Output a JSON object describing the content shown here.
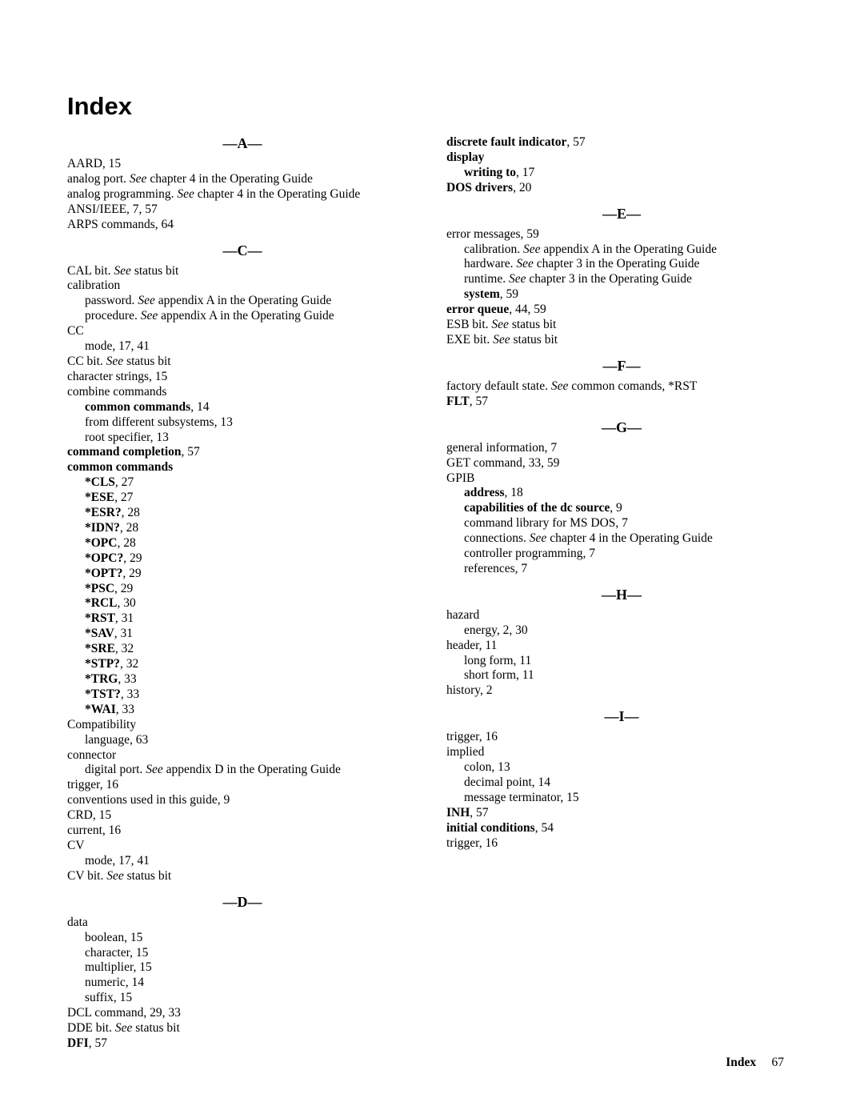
{
  "title": "Index",
  "page_label": "Index",
  "page_number": "67",
  "letter_dash": "—",
  "sections": [
    {
      "letter": "A",
      "entries": [
        {
          "indent": 0,
          "runs": [
            {
              "t": "AARD, 15"
            }
          ]
        },
        {
          "indent": 0,
          "runs": [
            {
              "t": "analog port. "
            },
            {
              "t": "See",
              "style": "i"
            },
            {
              "t": " chapter 4 in the Operating Guide"
            }
          ]
        },
        {
          "indent": 0,
          "runs": [
            {
              "t": "analog programming. "
            },
            {
              "t": "See",
              "style": "i"
            },
            {
              "t": " chapter 4 in the Operating Guide"
            }
          ]
        },
        {
          "indent": 0,
          "runs": [
            {
              "t": "ANSI/IEEE, 7, 57"
            }
          ]
        },
        {
          "indent": 0,
          "runs": [
            {
              "t": "ARPS commands, 64"
            }
          ]
        }
      ]
    },
    {
      "letter": "C",
      "entries": [
        {
          "indent": 0,
          "runs": [
            {
              "t": "CAL bit. "
            },
            {
              "t": "See",
              "style": "i"
            },
            {
              "t": " status bit"
            }
          ]
        },
        {
          "indent": 0,
          "runs": [
            {
              "t": "calibration"
            }
          ]
        },
        {
          "indent": 1,
          "runs": [
            {
              "t": "password. "
            },
            {
              "t": "See",
              "style": "i"
            },
            {
              "t": " appendix A in the Operating Guide"
            }
          ]
        },
        {
          "indent": 1,
          "runs": [
            {
              "t": "procedure. "
            },
            {
              "t": "See",
              "style": "i"
            },
            {
              "t": " appendix A in the Operating Guide"
            }
          ]
        },
        {
          "indent": 0,
          "runs": [
            {
              "t": "CC"
            }
          ]
        },
        {
          "indent": 1,
          "runs": [
            {
              "t": "mode, 17, 41"
            }
          ]
        },
        {
          "indent": 0,
          "runs": [
            {
              "t": "CC bit. "
            },
            {
              "t": "See",
              "style": "i"
            },
            {
              "t": " status bit"
            }
          ]
        },
        {
          "indent": 0,
          "runs": [
            {
              "t": "character strings, 15"
            }
          ]
        },
        {
          "indent": 0,
          "runs": [
            {
              "t": "combine commands"
            }
          ]
        },
        {
          "indent": 1,
          "runs": [
            {
              "t": "common commands",
              "style": "b"
            },
            {
              "t": ", 14"
            }
          ]
        },
        {
          "indent": 1,
          "runs": [
            {
              "t": "from different subsystems, 13"
            }
          ]
        },
        {
          "indent": 1,
          "runs": [
            {
              "t": "root specifier, 13"
            }
          ]
        },
        {
          "indent": 0,
          "runs": [
            {
              "t": "command completion",
              "style": "b"
            },
            {
              "t": ", 57"
            }
          ]
        },
        {
          "indent": 0,
          "runs": [
            {
              "t": "common commands",
              "style": "b"
            }
          ]
        },
        {
          "indent": 1,
          "runs": [
            {
              "t": "*CLS",
              "style": "b"
            },
            {
              "t": ", 27"
            }
          ]
        },
        {
          "indent": 1,
          "runs": [
            {
              "t": "*ESE",
              "style": "b"
            },
            {
              "t": ", 27"
            }
          ]
        },
        {
          "indent": 1,
          "runs": [
            {
              "t": "*ESR?",
              "style": "b"
            },
            {
              "t": ", 28"
            }
          ]
        },
        {
          "indent": 1,
          "runs": [
            {
              "t": "*IDN?",
              "style": "b"
            },
            {
              "t": ", 28"
            }
          ]
        },
        {
          "indent": 1,
          "runs": [
            {
              "t": "*OPC",
              "style": "b"
            },
            {
              "t": ", 28"
            }
          ]
        },
        {
          "indent": 1,
          "runs": [
            {
              "t": "*OPC?",
              "style": "b"
            },
            {
              "t": ", 29"
            }
          ]
        },
        {
          "indent": 1,
          "runs": [
            {
              "t": "*OPT?",
              "style": "b"
            },
            {
              "t": ", 29"
            }
          ]
        },
        {
          "indent": 1,
          "runs": [
            {
              "t": "*PSC",
              "style": "b"
            },
            {
              "t": ", 29"
            }
          ]
        },
        {
          "indent": 1,
          "runs": [
            {
              "t": "*RCL",
              "style": "b"
            },
            {
              "t": ", 30"
            }
          ]
        },
        {
          "indent": 1,
          "runs": [
            {
              "t": "*RST",
              "style": "b"
            },
            {
              "t": ", 31"
            }
          ]
        },
        {
          "indent": 1,
          "runs": [
            {
              "t": "*SAV",
              "style": "b"
            },
            {
              "t": ", 31"
            }
          ]
        },
        {
          "indent": 1,
          "runs": [
            {
              "t": "*SRE",
              "style": "b"
            },
            {
              "t": ", 32"
            }
          ]
        },
        {
          "indent": 1,
          "runs": [
            {
              "t": "*STP?",
              "style": "b"
            },
            {
              "t": ", 32"
            }
          ]
        },
        {
          "indent": 1,
          "runs": [
            {
              "t": "*TRG",
              "style": "b"
            },
            {
              "t": ", 33"
            }
          ]
        },
        {
          "indent": 1,
          "runs": [
            {
              "t": "*TST?",
              "style": "b"
            },
            {
              "t": ", 33"
            }
          ]
        },
        {
          "indent": 1,
          "runs": [
            {
              "t": "*WAI",
              "style": "b"
            },
            {
              "t": ", 33"
            }
          ]
        },
        {
          "indent": 0,
          "runs": [
            {
              "t": "Compatibility"
            }
          ]
        },
        {
          "indent": 1,
          "runs": [
            {
              "t": "language, 63"
            }
          ]
        },
        {
          "indent": 0,
          "runs": [
            {
              "t": "connector"
            }
          ]
        },
        {
          "indent": 1,
          "runs": [
            {
              "t": "digital port. "
            },
            {
              "t": "See",
              "style": "i"
            },
            {
              "t": " appendix D in the Operating Guide"
            }
          ]
        },
        {
          "indent": 0,
          "runs": [
            {
              "t": "trigger, 16"
            }
          ]
        },
        {
          "indent": 0,
          "runs": [
            {
              "t": "conventions used in this guide, 9"
            }
          ]
        },
        {
          "indent": 0,
          "runs": [
            {
              "t": "CRD, 15"
            }
          ]
        },
        {
          "indent": 0,
          "runs": [
            {
              "t": "current, 16"
            }
          ]
        },
        {
          "indent": 0,
          "runs": [
            {
              "t": "CV"
            }
          ]
        },
        {
          "indent": 1,
          "runs": [
            {
              "t": "mode, 17, 41"
            }
          ]
        },
        {
          "indent": 0,
          "runs": [
            {
              "t": "CV bit. "
            },
            {
              "t": "See",
              "style": "i"
            },
            {
              "t": " status bit"
            }
          ]
        }
      ]
    },
    {
      "letter": "D",
      "entries": [
        {
          "indent": 0,
          "runs": [
            {
              "t": "data"
            }
          ]
        },
        {
          "indent": 1,
          "runs": [
            {
              "t": "boolean, 15"
            }
          ]
        },
        {
          "indent": 1,
          "runs": [
            {
              "t": "character, 15"
            }
          ]
        },
        {
          "indent": 1,
          "runs": [
            {
              "t": "multiplier, 15"
            }
          ]
        },
        {
          "indent": 1,
          "runs": [
            {
              "t": "numeric, 14"
            }
          ]
        },
        {
          "indent": 1,
          "runs": [
            {
              "t": "suffix, 15"
            }
          ]
        },
        {
          "indent": 0,
          "runs": [
            {
              "t": "DCL command, 29, 33"
            }
          ]
        },
        {
          "indent": 0,
          "runs": [
            {
              "t": "DDE bit. "
            },
            {
              "t": "See",
              "style": "i"
            },
            {
              "t": " status bit"
            }
          ]
        },
        {
          "indent": 0,
          "runs": [
            {
              "t": "DFI",
              "style": "b"
            },
            {
              "t": ", 57"
            }
          ]
        },
        {
          "indent": 0,
          "runs": [
            {
              "t": "discrete fault indicator",
              "style": "b"
            },
            {
              "t": ", 57"
            }
          ]
        },
        {
          "indent": 0,
          "runs": [
            {
              "t": "display",
              "style": "b"
            }
          ]
        },
        {
          "indent": 1,
          "runs": [
            {
              "t": "writing to",
              "style": "b"
            },
            {
              "t": ", 17"
            }
          ]
        },
        {
          "indent": 0,
          "runs": [
            {
              "t": "DOS drivers",
              "style": "b"
            },
            {
              "t": ", 20"
            }
          ]
        }
      ]
    },
    {
      "letter": "E",
      "entries": [
        {
          "indent": 0,
          "runs": [
            {
              "t": "error messages, 59"
            }
          ]
        },
        {
          "indent": 1,
          "runs": [
            {
              "t": "calibration. "
            },
            {
              "t": "See",
              "style": "i"
            },
            {
              "t": " appendix A in the Operating Guide"
            }
          ]
        },
        {
          "indent": 1,
          "runs": [
            {
              "t": "hardware. "
            },
            {
              "t": "See",
              "style": "i"
            },
            {
              "t": " chapter 3 in the Operating Guide"
            }
          ]
        },
        {
          "indent": 1,
          "runs": [
            {
              "t": "runtime. "
            },
            {
              "t": "See",
              "style": "i"
            },
            {
              "t": " chapter 3 in the Operating Guide"
            }
          ]
        },
        {
          "indent": 1,
          "runs": [
            {
              "t": "system",
              "style": "b"
            },
            {
              "t": ", 59"
            }
          ]
        },
        {
          "indent": 0,
          "runs": [
            {
              "t": "error queue",
              "style": "b"
            },
            {
              "t": ", 44, 59"
            }
          ]
        },
        {
          "indent": 0,
          "runs": [
            {
              "t": "ESB bit. "
            },
            {
              "t": "See",
              "style": "i"
            },
            {
              "t": " status bit"
            }
          ]
        },
        {
          "indent": 0,
          "runs": [
            {
              "t": "EXE bit. "
            },
            {
              "t": "See",
              "style": "i"
            },
            {
              "t": " status bit"
            }
          ]
        }
      ]
    },
    {
      "letter": "F",
      "entries": [
        {
          "indent": 0,
          "runs": [
            {
              "t": "factory default state. "
            },
            {
              "t": "See",
              "style": "i"
            },
            {
              "t": " common comands, *RST"
            }
          ]
        },
        {
          "indent": 0,
          "runs": [
            {
              "t": "FLT",
              "style": "b"
            },
            {
              "t": ", 57"
            }
          ]
        }
      ]
    },
    {
      "letter": "G",
      "entries": [
        {
          "indent": 0,
          "runs": [
            {
              "t": "general information, 7"
            }
          ]
        },
        {
          "indent": 0,
          "runs": [
            {
              "t": "GET command, 33, 59"
            }
          ]
        },
        {
          "indent": 0,
          "runs": [
            {
              "t": "GPIB"
            }
          ]
        },
        {
          "indent": 1,
          "runs": [
            {
              "t": "address",
              "style": "b"
            },
            {
              "t": ", 18"
            }
          ]
        },
        {
          "indent": 1,
          "runs": [
            {
              "t": "capabilities of the dc source",
              "style": "b"
            },
            {
              "t": ", 9"
            }
          ]
        },
        {
          "indent": 1,
          "runs": [
            {
              "t": "command library for MS DOS, 7"
            }
          ]
        },
        {
          "indent": 1,
          "runs": [
            {
              "t": "connections. "
            },
            {
              "t": "See",
              "style": "i"
            },
            {
              "t": " chapter 4 in the Operating Guide"
            }
          ]
        },
        {
          "indent": 1,
          "runs": [
            {
              "t": "controller programming, 7"
            }
          ]
        },
        {
          "indent": 1,
          "runs": [
            {
              "t": "references, 7"
            }
          ]
        }
      ]
    },
    {
      "letter": "H",
      "entries": [
        {
          "indent": 0,
          "runs": [
            {
              "t": "hazard"
            }
          ]
        },
        {
          "indent": 1,
          "runs": [
            {
              "t": "energy, 2, 30"
            }
          ]
        },
        {
          "indent": 0,
          "runs": [
            {
              "t": "header, 11"
            }
          ]
        },
        {
          "indent": 1,
          "runs": [
            {
              "t": "long form, 11"
            }
          ]
        },
        {
          "indent": 1,
          "runs": [
            {
              "t": "short form, 11"
            }
          ]
        },
        {
          "indent": 0,
          "runs": [
            {
              "t": "history, 2"
            }
          ]
        }
      ]
    },
    {
      "letter": "I",
      "entries": [
        {
          "indent": 0,
          "runs": [
            {
              "t": "trigger, 16"
            }
          ]
        },
        {
          "indent": 0,
          "runs": [
            {
              "t": "implied"
            }
          ]
        },
        {
          "indent": 1,
          "runs": [
            {
              "t": "colon, 13"
            }
          ]
        },
        {
          "indent": 1,
          "runs": [
            {
              "t": "decimal point, 14"
            }
          ]
        },
        {
          "indent": 1,
          "runs": [
            {
              "t": "message terminator, 15"
            }
          ]
        },
        {
          "indent": 0,
          "runs": [
            {
              "t": "INH",
              "style": "b"
            },
            {
              "t": ", 57"
            }
          ]
        },
        {
          "indent": 0,
          "runs": [
            {
              "t": "initial conditions",
              "style": "b"
            },
            {
              "t": ", 54"
            }
          ]
        },
        {
          "indent": 0,
          "runs": [
            {
              "t": "trigger, 16"
            }
          ]
        }
      ]
    }
  ]
}
